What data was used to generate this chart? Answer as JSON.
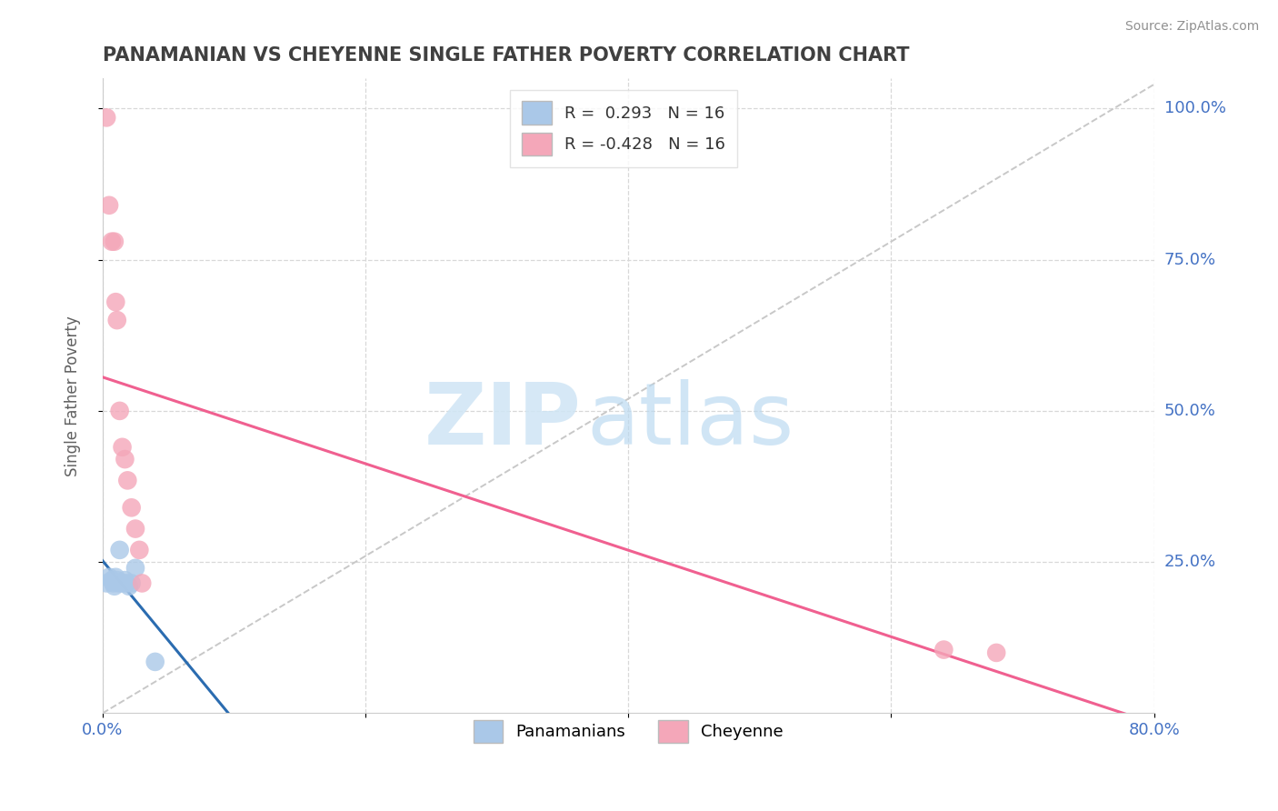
{
  "title": "PANAMANIAN VS CHEYENNE SINGLE FATHER POVERTY CORRELATION CHART",
  "source": "Source: ZipAtlas.com",
  "ylabel": "Single Father Poverty",
  "xlim": [
    0.0,
    0.8
  ],
  "ylim": [
    0.0,
    1.05
  ],
  "x_ticks": [
    0.0,
    0.2,
    0.4,
    0.6,
    0.8
  ],
  "x_tick_labels": [
    "0.0%",
    "",
    "",
    "",
    "80.0%"
  ],
  "y_ticks": [
    0.25,
    0.5,
    0.75,
    1.0
  ],
  "y_tick_labels": [
    "25.0%",
    "50.0%",
    "75.0%",
    "100.0%"
  ],
  "panamanian_x": [
    0.003,
    0.005,
    0.007,
    0.008,
    0.009,
    0.01,
    0.011,
    0.012,
    0.013,
    0.015,
    0.017,
    0.018,
    0.02,
    0.022,
    0.025,
    0.04
  ],
  "panamanian_y": [
    0.215,
    0.225,
    0.22,
    0.215,
    0.21,
    0.225,
    0.22,
    0.215,
    0.27,
    0.215,
    0.22,
    0.215,
    0.21,
    0.215,
    0.24,
    0.085
  ],
  "cheyenne_x": [
    0.003,
    0.005,
    0.007,
    0.009,
    0.01,
    0.011,
    0.013,
    0.015,
    0.017,
    0.019,
    0.022,
    0.025,
    0.028,
    0.03,
    0.64,
    0.68
  ],
  "cheyenne_y": [
    0.985,
    0.84,
    0.78,
    0.78,
    0.68,
    0.65,
    0.5,
    0.44,
    0.42,
    0.385,
    0.34,
    0.305,
    0.27,
    0.215,
    0.105,
    0.1
  ],
  "R_panamanian": 0.293,
  "N_panamanian": 16,
  "R_cheyenne": -0.428,
  "N_cheyenne": 16,
  "panamanian_color": "#aac8e8",
  "cheyenne_color": "#f4a7b9",
  "panamanian_line_color": "#2b6cb0",
  "cheyenne_line_color": "#f06090",
  "diagonal_color": "#c8c8c8",
  "watermark_zip": "ZIP",
  "watermark_atlas": "atlas",
  "legend_label_panamanian": "Panamanians",
  "legend_label_cheyenne": "Cheyenne"
}
